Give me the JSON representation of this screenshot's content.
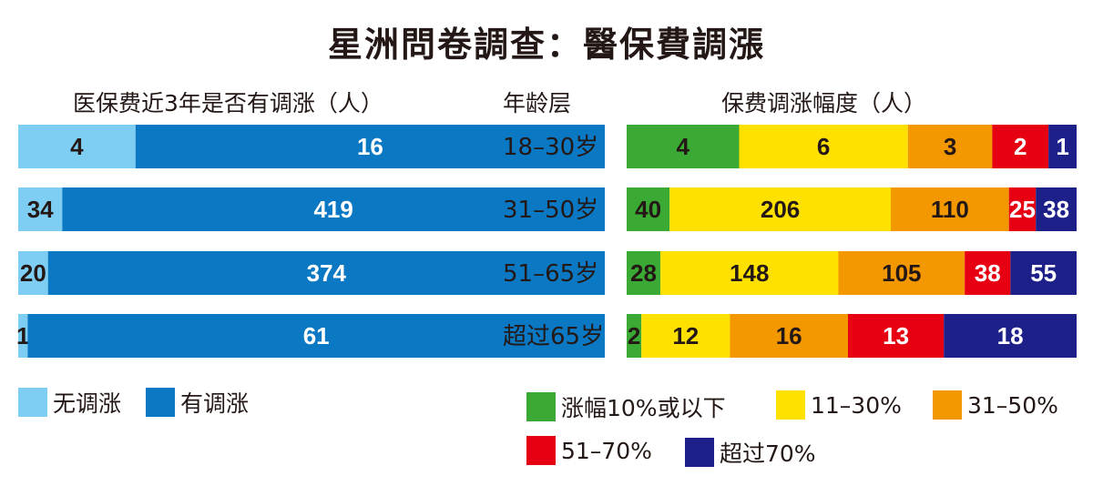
{
  "title": "星洲問卷調查：醫保費調漲",
  "left_header": "医保费近3年是否有调涨（人）",
  "middle_header": "年龄层",
  "right_header": "保费调涨幅度（人）",
  "chart_data": [
    {
      "type": "bar",
      "stacked": "percent",
      "orientation": "horizontal",
      "title": "医保费近3年是否有调涨（人）",
      "categories": [
        "18–30岁",
        "31–50岁",
        "51–65岁",
        "超过65岁"
      ],
      "series": [
        {
          "name": "无调涨",
          "color": "#7ecef4",
          "values": [
            4,
            34,
            20,
            1
          ]
        },
        {
          "name": "有调涨",
          "color": "#0a78c2",
          "values": [
            16,
            419,
            374,
            61
          ]
        }
      ],
      "legend": "bottom-left"
    },
    {
      "type": "bar",
      "stacked": "percent",
      "orientation": "horizontal",
      "title": "保费调涨幅度（人）",
      "categories": [
        "18–30岁",
        "31–50岁",
        "51–65岁",
        "超过65岁"
      ],
      "series": [
        {
          "name": "涨幅10%或以下",
          "color": "#3aaa35",
          "values": [
            4,
            40,
            28,
            2
          ]
        },
        {
          "name": "11–30%",
          "color": "#ffe100",
          "values": [
            6,
            206,
            148,
            12
          ]
        },
        {
          "name": "31–50%",
          "color": "#f39800",
          "values": [
            3,
            110,
            105,
            16
          ]
        },
        {
          "name": "51–70%",
          "color": "#e60012",
          "values": [
            2,
            25,
            38,
            13
          ]
        },
        {
          "name": "超过70%",
          "color": "#1d2088",
          "values": [
            1,
            38,
            55,
            18
          ]
        }
      ],
      "legend": "bottom-right"
    }
  ]
}
